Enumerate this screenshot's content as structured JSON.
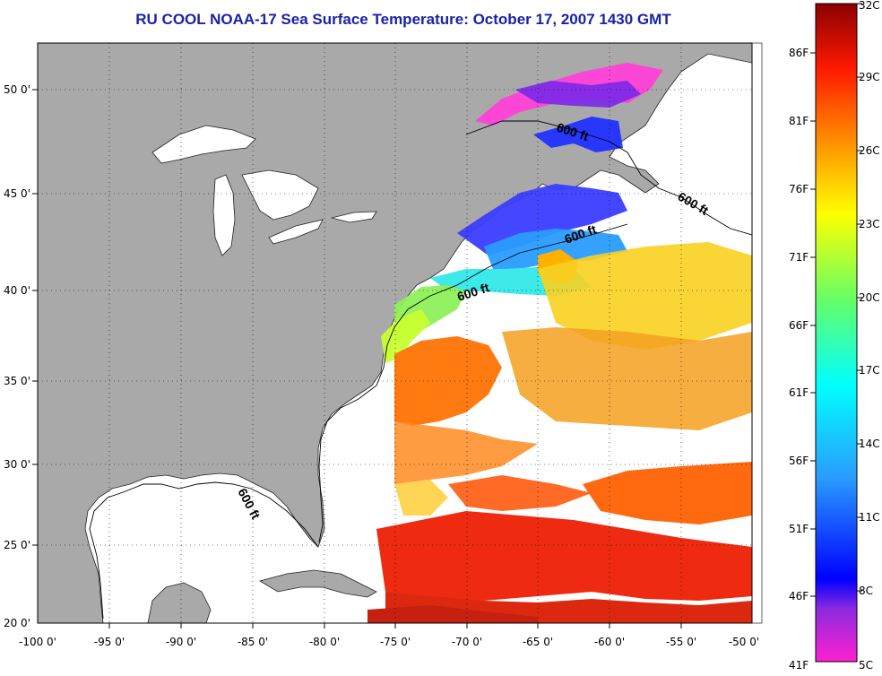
{
  "title": "RU COOL  NOAA-17  Sea Surface Temperature:  October 17, 2007 1430 GMT",
  "longitude_labels": [
    "-100 0'",
    "-95 0'",
    "-90 0'",
    "-85 0'",
    "-80 0'",
    "-75 0'",
    "-70 0'",
    "-65 0'",
    "-60 0'",
    "-55 0'",
    "-50 0'"
  ],
  "latitude_labels": [
    "50 0'",
    "45 0'",
    "40 0'",
    "35 0'",
    "30 0'",
    "25 0'",
    "20 0'"
  ],
  "contour_label": "600 ft",
  "colorbar": {
    "celsius_labels": [
      "32C",
      "29C",
      "26C",
      "23C",
      "20C",
      "17C",
      "14C",
      "11C",
      "8C",
      "5C"
    ],
    "fahrenheit_labels": [
      "86F",
      "81F",
      "76F",
      "71F",
      "66F",
      "61F",
      "56F",
      "51F",
      "46F",
      "41F"
    ]
  },
  "colors": {
    "title": "#1a22a8",
    "land": "#a9a9a9",
    "ocean_no_data": "#ffffff",
    "sst_cold": "#ff20d0",
    "sst_warm": "#8b0000"
  }
}
